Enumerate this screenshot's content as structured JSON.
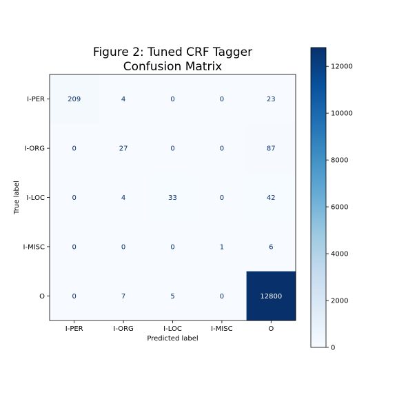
{
  "chart_data": {
    "type": "heatmap",
    "title_lines": [
      "Figure 2: Tuned CRF Tagger",
      "Confusion Matrix"
    ],
    "xlabel": "Predicted label",
    "ylabel": "True label",
    "x_categories": [
      "I-PER",
      "I-ORG",
      "I-LOC",
      "I-MISC",
      "O"
    ],
    "y_categories": [
      "I-PER",
      "I-ORG",
      "I-LOC",
      "I-MISC",
      "O"
    ],
    "matrix": [
      [
        209,
        4,
        0,
        0,
        23
      ],
      [
        0,
        27,
        0,
        0,
        87
      ],
      [
        0,
        4,
        33,
        0,
        42
      ],
      [
        0,
        0,
        0,
        1,
        6
      ],
      [
        0,
        7,
        5,
        0,
        12800
      ]
    ],
    "colorbar": {
      "colormap": "Blues",
      "range": [
        0,
        12800
      ],
      "ticks": [
        0,
        2000,
        4000,
        6000,
        8000,
        10000,
        12000
      ]
    }
  }
}
